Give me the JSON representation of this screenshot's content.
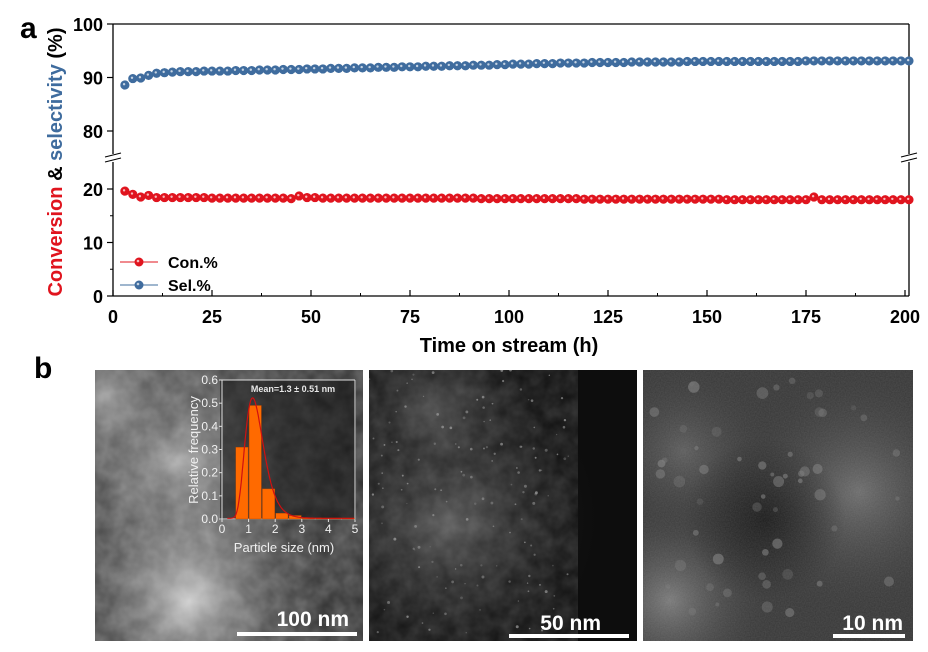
{
  "panels": {
    "a_label": "a",
    "b_label": "b"
  },
  "chart_data": [
    {
      "type": "scatter",
      "panel": "a",
      "title": "",
      "xlabel": "Time on stream (h)",
      "ylabel_parts": [
        {
          "text": "Conversion",
          "color": "#e0141e"
        },
        {
          "text": " & ",
          "color": "#000000"
        },
        {
          "text": "selectivity",
          "color": "#3f6c9e"
        },
        {
          "text": " (%)",
          "color": "#000000"
        }
      ],
      "xlim": [
        0,
        200
      ],
      "x_ticks": [
        0,
        25,
        50,
        75,
        100,
        125,
        150,
        175,
        200
      ],
      "broken_y_axis": true,
      "y_segments": [
        {
          "range": [
            0,
            25
          ],
          "ticks": [
            0,
            10,
            20
          ]
        },
        {
          "range": [
            75,
            100
          ],
          "ticks": [
            80,
            90,
            100
          ]
        }
      ],
      "grid": false,
      "legend": {
        "placement": "bottom-left",
        "entries": [
          "Con.%",
          "Sel.%"
        ]
      },
      "x": [
        3,
        5,
        7,
        9,
        11,
        13,
        15,
        17,
        19,
        21,
        23,
        25,
        27,
        29,
        31,
        33,
        35,
        37,
        39,
        41,
        43,
        45,
        47,
        49,
        51,
        53,
        55,
        57,
        59,
        61,
        63,
        65,
        67,
        69,
        71,
        73,
        75,
        77,
        79,
        81,
        83,
        85,
        87,
        89,
        91,
        93,
        95,
        97,
        99,
        101,
        103,
        105,
        107,
        109,
        111,
        113,
        115,
        117,
        119,
        121,
        123,
        125,
        127,
        129,
        131,
        133,
        135,
        137,
        139,
        141,
        143,
        145,
        147,
        149,
        151,
        153,
        155,
        157,
        159,
        161,
        163,
        165,
        167,
        169,
        171,
        173,
        175,
        177,
        179,
        181,
        183,
        185,
        187,
        189,
        191,
        193,
        195,
        197,
        199,
        201
      ],
      "series": [
        {
          "name": "Sel.%",
          "color": "#3f6c9e",
          "values": [
            88.6,
            89.8,
            89.9,
            90.4,
            90.8,
            90.9,
            91.0,
            91.1,
            91.1,
            91.1,
            91.2,
            91.2,
            91.2,
            91.2,
            91.3,
            91.3,
            91.3,
            91.4,
            91.4,
            91.4,
            91.5,
            91.5,
            91.5,
            91.6,
            91.6,
            91.6,
            91.7,
            91.7,
            91.7,
            91.8,
            91.8,
            91.8,
            91.9,
            91.9,
            91.9,
            92.0,
            92.0,
            92.0,
            92.1,
            92.1,
            92.1,
            92.2,
            92.2,
            92.2,
            92.3,
            92.3,
            92.3,
            92.4,
            92.4,
            92.5,
            92.5,
            92.5,
            92.6,
            92.6,
            92.6,
            92.7,
            92.7,
            92.7,
            92.7,
            92.8,
            92.8,
            92.8,
            92.8,
            92.8,
            92.9,
            92.9,
            92.9,
            92.9,
            92.9,
            92.9,
            92.9,
            93.0,
            93.0,
            93.0,
            93.0,
            93.0,
            93.0,
            93.0,
            93.0,
            93.0,
            93.0,
            93.0,
            93.0,
            93.0,
            93.0,
            93.0,
            93.1,
            93.1,
            93.1,
            93.1,
            93.1,
            93.1,
            93.1,
            93.1,
            93.1,
            93.1,
            93.1,
            93.1,
            93.1,
            93.1
          ]
        },
        {
          "name": "Con.%",
          "color": "#e0141e",
          "values": [
            19.6,
            19.0,
            18.5,
            18.8,
            18.4,
            18.4,
            18.4,
            18.4,
            18.4,
            18.4,
            18.4,
            18.3,
            18.3,
            18.3,
            18.3,
            18.3,
            18.3,
            18.3,
            18.3,
            18.3,
            18.3,
            18.2,
            18.7,
            18.4,
            18.4,
            18.3,
            18.3,
            18.3,
            18.3,
            18.3,
            18.3,
            18.3,
            18.3,
            18.3,
            18.3,
            18.3,
            18.3,
            18.3,
            18.3,
            18.3,
            18.3,
            18.3,
            18.3,
            18.3,
            18.3,
            18.2,
            18.2,
            18.2,
            18.2,
            18.2,
            18.2,
            18.2,
            18.2,
            18.2,
            18.2,
            18.2,
            18.2,
            18.2,
            18.1,
            18.1,
            18.1,
            18.1,
            18.1,
            18.1,
            18.1,
            18.1,
            18.1,
            18.1,
            18.1,
            18.1,
            18.1,
            18.1,
            18.1,
            18.1,
            18.1,
            18.1,
            18.0,
            18.0,
            18.0,
            18.0,
            18.0,
            18.0,
            18.0,
            18.0,
            18.0,
            18.0,
            18.0,
            18.5,
            18.0,
            18.0,
            18.0,
            18.0,
            18.0,
            18.0,
            18.0,
            18.0,
            18.0,
            18.0,
            18.0,
            18.0
          ]
        }
      ]
    },
    {
      "type": "bar",
      "panel": "b-inset",
      "title": "",
      "annotation": "Mean=1.3 ± 0.51 nm",
      "xlabel": "Particle size (nm)",
      "ylabel": "Relative frequency",
      "xlim": [
        0,
        5
      ],
      "ylim": [
        0,
        0.6
      ],
      "x_ticks": [
        0,
        1,
        2,
        3,
        4,
        5
      ],
      "y_ticks": [
        0.0,
        0.1,
        0.2,
        0.3,
        0.4,
        0.5,
        0.6
      ],
      "y_tick_labels": [
        "0.0",
        "0.1",
        "0.2",
        "0.3",
        "0.4",
        "0.5",
        "0.6"
      ],
      "bin_width": 0.5,
      "bin_centers": [
        0.75,
        1.25,
        1.75,
        2.25,
        2.75,
        3.25,
        3.75,
        4.25,
        4.75
      ],
      "values": [
        0.31,
        0.49,
        0.13,
        0.025,
        0.015,
        0.004,
        0.004,
        0.004,
        0.004
      ],
      "bar_color": "#ff6a00",
      "fit": {
        "type": "lognormal",
        "color": "#d01010",
        "peak_x": 1.15,
        "peak_y": 0.52
      }
    }
  ],
  "tem_images": [
    {
      "scale_bar": "100 nm",
      "description": "low-magnification HAADF-STEM"
    },
    {
      "scale_bar": "50 nm",
      "description": "medium-magnification HAADF-STEM"
    },
    {
      "scale_bar": "10 nm",
      "description": "high-magnification HAADF-STEM"
    }
  ]
}
